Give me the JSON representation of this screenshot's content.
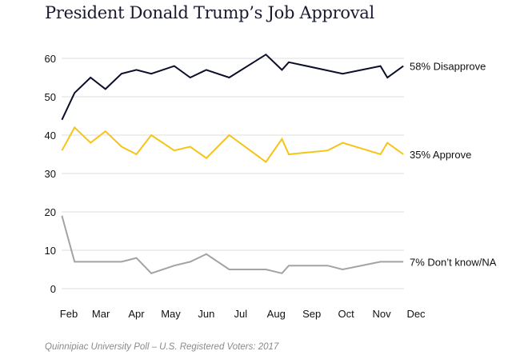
{
  "chart_data": {
    "type": "line",
    "title": "President Donald Trump’s Job Approval",
    "note": "Quinnipiac University Poll – U.S. Registered Voters: 2017",
    "ylim": [
      0,
      60
    ],
    "yticks": [
      0,
      10,
      20,
      30,
      40,
      50,
      60
    ],
    "xticks": [
      {
        "label": "Feb",
        "date": "2017-02-01"
      },
      {
        "label": "Mar",
        "date": "2017-03-01"
      },
      {
        "label": "Apr",
        "date": "2017-04-01"
      },
      {
        "label": "May",
        "date": "2017-05-01"
      },
      {
        "label": "Jun",
        "date": "2017-06-01"
      },
      {
        "label": "Jul",
        "date": "2017-07-01"
      },
      {
        "label": "Aug",
        "date": "2017-08-01"
      },
      {
        "label": "Sep",
        "date": "2017-09-01"
      },
      {
        "label": "Oct",
        "date": "2017-10-01"
      },
      {
        "label": "Nov",
        "date": "2017-11-01"
      },
      {
        "label": "Dec",
        "date": "2017-12-01"
      }
    ],
    "grid": true,
    "series": [
      {
        "name": "58% Disapprove",
        "color": "#0b0e2a",
        "points": [
          [
            "2017-01-26",
            44
          ],
          [
            "2017-02-06",
            51
          ],
          [
            "2017-02-20",
            55
          ],
          [
            "2017-03-05",
            52
          ],
          [
            "2017-03-19",
            56
          ],
          [
            "2017-04-01",
            57
          ],
          [
            "2017-04-14",
            56
          ],
          [
            "2017-05-04",
            58
          ],
          [
            "2017-05-18",
            55
          ],
          [
            "2017-06-01",
            57
          ],
          [
            "2017-06-21",
            55
          ],
          [
            "2017-07-23",
            61
          ],
          [
            "2017-08-06",
            57
          ],
          [
            "2017-08-12",
            59
          ],
          [
            "2017-09-28",
            56
          ],
          [
            "2017-10-31",
            58
          ],
          [
            "2017-11-06",
            55
          ],
          [
            "2017-11-20",
            58
          ]
        ]
      },
      {
        "name": "35% Approve",
        "color": "#f6c417",
        "points": [
          [
            "2017-01-26",
            36
          ],
          [
            "2017-02-06",
            42
          ],
          [
            "2017-02-20",
            38
          ],
          [
            "2017-03-05",
            41
          ],
          [
            "2017-03-19",
            37
          ],
          [
            "2017-04-01",
            35
          ],
          [
            "2017-04-14",
            40
          ],
          [
            "2017-05-04",
            36
          ],
          [
            "2017-05-18",
            37
          ],
          [
            "2017-06-01",
            34
          ],
          [
            "2017-06-21",
            40
          ],
          [
            "2017-07-23",
            33
          ],
          [
            "2017-08-06",
            39
          ],
          [
            "2017-08-12",
            35
          ],
          [
            "2017-09-15",
            36
          ],
          [
            "2017-09-28",
            38
          ],
          [
            "2017-10-31",
            35
          ],
          [
            "2017-11-06",
            38
          ],
          [
            "2017-11-20",
            35
          ]
        ]
      },
      {
        "name": "7% Don’t know/NA",
        "color": "#a3a3a3",
        "points": [
          [
            "2017-01-26",
            19
          ],
          [
            "2017-02-06",
            7
          ],
          [
            "2017-03-19",
            7
          ],
          [
            "2017-04-01",
            8
          ],
          [
            "2017-04-14",
            4
          ],
          [
            "2017-05-04",
            6
          ],
          [
            "2017-05-18",
            7
          ],
          [
            "2017-06-01",
            9
          ],
          [
            "2017-06-21",
            5
          ],
          [
            "2017-07-23",
            5
          ],
          [
            "2017-08-06",
            4
          ],
          [
            "2017-08-12",
            6
          ],
          [
            "2017-09-15",
            6
          ],
          [
            "2017-09-28",
            5
          ],
          [
            "2017-10-31",
            7
          ],
          [
            "2017-11-20",
            7
          ]
        ]
      }
    ]
  }
}
